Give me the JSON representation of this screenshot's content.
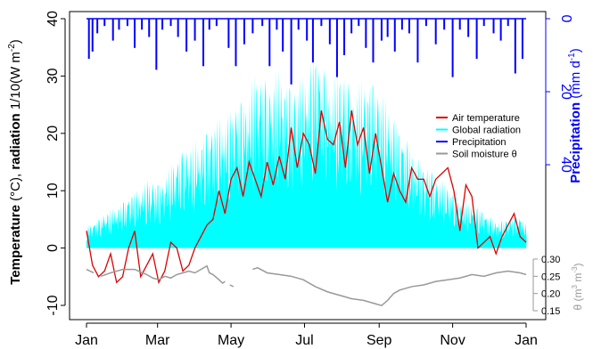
{
  "chart_data": {
    "type": "line",
    "title": "",
    "x_axis": {
      "ticks": [
        "Jan",
        "Mar",
        "May",
        "Jul",
        "Sep",
        "Nov",
        "Jan"
      ],
      "tick_days": [
        0,
        59,
        120,
        181,
        243,
        304,
        365
      ]
    },
    "left_axis": {
      "label_parts": [
        "Temperature",
        "(°C),",
        "radiation",
        "1/10(W m",
        "-2",
        ")"
      ],
      "range": [
        -10,
        40
      ],
      "ticks": [
        "-10",
        "0",
        "10",
        "20",
        "30",
        "40"
      ],
      "tick_values": [
        -10,
        0,
        10,
        20,
        30,
        40
      ],
      "color": "#000000"
    },
    "right_precip_axis": {
      "label_parts": [
        "Precipitation",
        "(mm d",
        "-1",
        ")"
      ],
      "ticks": [
        "0",
        "20",
        "40"
      ],
      "tick_values": [
        0,
        20,
        40
      ],
      "reversed": true,
      "color": "#0000ff"
    },
    "right_soil_axis": {
      "label_parts": [
        "θ (m",
        "3",
        " m",
        "-3",
        ")"
      ],
      "ticks": [
        "0.15",
        "0.20",
        "0.25",
        "0.30"
      ],
      "tick_values": [
        0.15,
        0.2,
        0.25,
        0.3
      ],
      "color": "#999999"
    },
    "legend": {
      "placement": "right",
      "entries": [
        {
          "label": "Air temperature",
          "color": "#dd0000"
        },
        {
          "label": "Global radiation",
          "color": "#00ffff"
        },
        {
          "label": "Precipitation",
          "color": "#0000ff"
        },
        {
          "label": "Soil moisture θ",
          "color": "#999999"
        }
      ]
    },
    "series": [
      {
        "name": "Air temperature",
        "kind": "line",
        "axis": "left",
        "color": "#dd0000",
        "x_day": [
          0,
          5,
          10,
          15,
          20,
          25,
          30,
          35,
          40,
          45,
          50,
          55,
          60,
          65,
          70,
          75,
          80,
          85,
          90,
          95,
          100,
          105,
          110,
          115,
          120,
          125,
          130,
          135,
          140,
          145,
          150,
          155,
          160,
          165,
          170,
          175,
          180,
          185,
          190,
          195,
          200,
          205,
          210,
          215,
          220,
          225,
          230,
          235,
          240,
          245,
          250,
          255,
          260,
          265,
          270,
          275,
          280,
          285,
          290,
          295,
          300,
          305,
          310,
          315,
          320,
          325,
          330,
          335,
          340,
          345,
          350,
          355,
          360,
          365
        ],
        "values": [
          3,
          -3,
          -5,
          -4,
          -1,
          -6,
          -5,
          0,
          3,
          -5,
          -3,
          -1,
          -6,
          -4,
          1,
          0,
          -4,
          -3,
          0,
          2,
          4,
          5,
          10,
          6,
          12,
          14,
          9,
          15,
          12,
          9,
          15,
          11,
          16,
          12,
          21,
          14,
          20,
          18,
          13,
          24,
          19,
          18,
          22,
          14,
          24,
          18,
          21,
          13,
          20,
          14,
          8,
          13,
          10,
          8,
          14,
          12,
          12,
          9,
          12,
          13,
          14,
          10,
          3,
          11,
          9,
          0,
          1,
          2,
          -1,
          2,
          4,
          6,
          2,
          1
        ]
      },
      {
        "name": "Global radiation",
        "kind": "area",
        "axis": "left",
        "color": "#00ffff",
        "x_day": [
          0,
          10,
          20,
          30,
          40,
          50,
          60,
          70,
          80,
          90,
          100,
          110,
          120,
          130,
          140,
          150,
          160,
          170,
          180,
          190,
          200,
          210,
          220,
          230,
          240,
          250,
          260,
          270,
          280,
          290,
          300,
          310,
          320,
          330,
          340,
          350,
          360,
          365
        ],
        "values": [
          4,
          5,
          7,
          8,
          10,
          12,
          11,
          15,
          17,
          19,
          20,
          23,
          24,
          26,
          31,
          29,
          32,
          27,
          31,
          34,
          30,
          31,
          28,
          30,
          28,
          26,
          20,
          18,
          14,
          13,
          11,
          8,
          8,
          6,
          5,
          5,
          6,
          4
        ]
      },
      {
        "name": "Precipitation",
        "kind": "bar",
        "axis": "precip",
        "color": "#0000ff",
        "x_day": [
          2,
          5,
          9,
          15,
          22,
          27,
          34,
          40,
          46,
          52,
          58,
          63,
          70,
          76,
          83,
          90,
          97,
          102,
          108,
          118,
          124,
          131,
          138,
          146,
          152,
          158,
          163,
          170,
          176,
          183,
          188,
          195,
          202,
          208,
          214,
          220,
          226,
          232,
          238,
          245,
          250,
          256,
          262,
          268,
          275,
          282,
          290,
          297,
          304,
          310,
          317,
          324,
          330,
          338,
          344,
          350,
          356,
          362
        ],
        "values": [
          11,
          9,
          4,
          2,
          6,
          3,
          2,
          8,
          3,
          5,
          14,
          3,
          2,
          5,
          9,
          6,
          13,
          3,
          2,
          8,
          13,
          7,
          4,
          2,
          13,
          3,
          9,
          18,
          3,
          6,
          12,
          2,
          7,
          16,
          10,
          4,
          2,
          8,
          12,
          6,
          5,
          9,
          3,
          4,
          12,
          2,
          7,
          3,
          16,
          3,
          5,
          11,
          2,
          4,
          6,
          2,
          15,
          11
        ]
      },
      {
        "name": "Soil moisture θ",
        "kind": "line",
        "axis": "soil",
        "color": "#999999",
        "segments": [
          {
            "x_day": [
              0,
              3,
              6
            ],
            "values": [
              0.27,
              0.265,
              0.26
            ]
          },
          {
            "x_day": [
              12,
              20,
              30,
              40,
              50,
              55,
              60,
              65,
              70,
              75,
              80,
              85,
              90,
              95,
              100,
              102,
              105,
              110,
              113,
              115
            ],
            "values": [
              0.25,
              0.26,
              0.27,
              0.27,
              0.255,
              0.245,
              0.24,
              0.25,
              0.245,
              0.255,
              0.26,
              0.265,
              0.26,
              0.27,
              0.28,
              0.26,
              0.255,
              0.24,
              0.23,
              0.235
            ]
          },
          {
            "x_day": [
              119,
              122
            ],
            "values": [
              0.225,
              0.22
            ]
          },
          {
            "x_day": [
              138,
              142,
              150,
              160,
              170,
              180,
              190,
              200,
              210,
              220,
              230,
              240,
              245,
              250,
              255,
              260,
              270,
              280,
              290,
              300,
              310,
              320,
              330,
              340,
              350,
              360,
              365
            ],
            "values": [
              0.27,
              0.275,
              0.26,
              0.255,
              0.25,
              0.24,
              0.22,
              0.205,
              0.195,
              0.185,
              0.18,
              0.17,
              0.165,
              0.18,
              0.2,
              0.21,
              0.22,
              0.225,
              0.235,
              0.24,
              0.245,
              0.255,
              0.25,
              0.26,
              0.265,
              0.26,
              0.255
            ]
          }
        ]
      }
    ]
  }
}
